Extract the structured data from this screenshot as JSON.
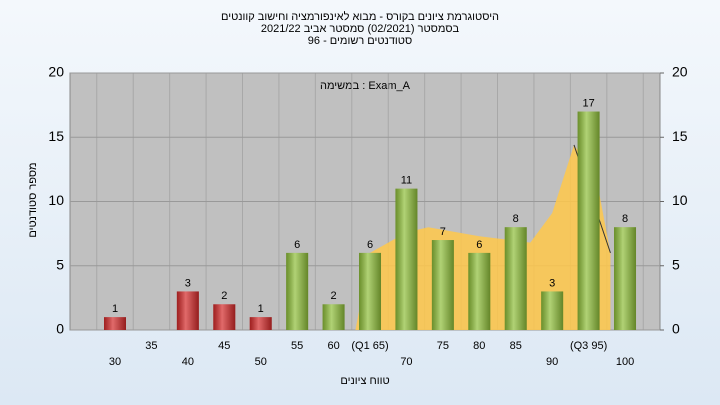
{
  "chart_data": {
    "type": "bar",
    "title_lines": [
      "היסטוגרמת ציונים בקורס - מבוא לאינפורמציה וחישוב קוונטים",
      "בסמסטר  (02/2021)  סמסטר אביב 2021/22",
      "סטודנטים רשומים - 96"
    ],
    "annotation": "במשימה : Exam_A",
    "x_label": "טווח ציונים",
    "y_label": "מספר סטודנטים",
    "categories": [
      "30",
      "35",
      "40",
      "45",
      "50",
      "55",
      "60",
      "(Q1 65)",
      "70",
      "75",
      "80",
      "85",
      "90",
      "(Q3 95)",
      "100"
    ],
    "values": [
      1,
      null,
      3,
      2,
      1,
      6,
      2,
      6,
      11,
      7,
      6,
      8,
      3,
      17,
      8
    ],
    "colors": [
      "#d42a2a",
      null,
      "#d42a2a",
      "#d42a2a",
      "#d42a2a",
      "#8fbf3a",
      "#8fbf3a",
      "#8fbf3a",
      "#8fbf3a",
      "#8fbf3a",
      "#8fbf3a",
      "#8fbf3a",
      "#8fbf3a",
      "#8fbf3a",
      "#8fbf3a"
    ],
    "area": {
      "color": "#ffc84a",
      "x": [
        63,
        65,
        70,
        73,
        80,
        87,
        90,
        93,
        96,
        98
      ],
      "values": [
        0,
        6,
        7.6,
        8,
        7.3,
        6.8,
        9.1,
        14.4,
        12,
        6
      ]
    },
    "ylim": [
      0,
      20
    ],
    "yticks": [
      0,
      5,
      10,
      15,
      20
    ],
    "y2lim": [
      0,
      20
    ],
    "y2ticks": [
      0,
      5,
      10,
      15,
      20
    ],
    "grid": true
  }
}
